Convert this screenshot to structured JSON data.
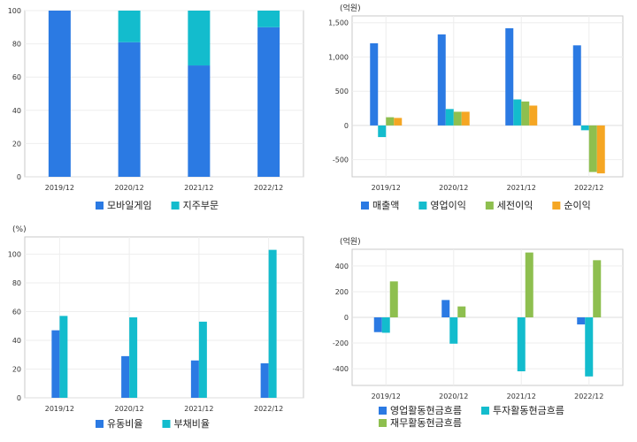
{
  "chart_data": [
    {
      "type": "bar",
      "stacked": true,
      "unit": "",
      "categories": [
        "2019/12",
        "2020/12",
        "2021/12",
        "2022/12"
      ],
      "ylim": [
        0,
        100
      ],
      "yticks": [
        0,
        20,
        40,
        60,
        80,
        100
      ],
      "series": [
        {
          "name": "모바일게임",
          "color": "#2b7ae3",
          "values": [
            100,
            81,
            67,
            90
          ]
        },
        {
          "name": "지주부문",
          "color": "#13bccd",
          "values": [
            0,
            19,
            33,
            10
          ]
        }
      ],
      "legend_position": "bottom",
      "grid": true
    },
    {
      "type": "bar",
      "stacked": false,
      "unit": "(억원)",
      "categories": [
        "2019/12",
        "2020/12",
        "2021/12",
        "2022/12"
      ],
      "ylim": [
        -750,
        1600
      ],
      "yticks": [
        -500,
        0,
        500,
        1000,
        1500
      ],
      "tick_labels": [
        "-500",
        "0",
        "500",
        "1,000",
        "1,500"
      ],
      "series": [
        {
          "name": "매출액",
          "color": "#2b7ae3",
          "values": [
            1200,
            1330,
            1420,
            1170
          ]
        },
        {
          "name": "영업이익",
          "color": "#13bccd",
          "values": [
            -170,
            240,
            380,
            -70
          ]
        },
        {
          "name": "세전이익",
          "color": "#8ebf4f",
          "values": [
            120,
            200,
            350,
            -680
          ]
        },
        {
          "name": "순이익",
          "color": "#f5a623",
          "values": [
            110,
            200,
            290,
            -700
          ]
        }
      ],
      "legend_position": "bottom",
      "grid": true
    },
    {
      "type": "bar",
      "stacked": false,
      "unit": "(%)",
      "categories": [
        "2019/12",
        "2020/12",
        "2021/12",
        "2022/12"
      ],
      "ylim": [
        0,
        112
      ],
      "yticks": [
        0,
        20,
        40,
        60,
        80,
        100
      ],
      "series": [
        {
          "name": "유동비율",
          "color": "#2b7ae3",
          "values": [
            47,
            29,
            26,
            24
          ]
        },
        {
          "name": "부채비율",
          "color": "#13bccd",
          "values": [
            57,
            56,
            53,
            103
          ]
        }
      ],
      "legend_position": "bottom",
      "grid": true
    },
    {
      "type": "bar",
      "stacked": false,
      "unit": "(억원)",
      "categories": [
        "2019/12",
        "2020/12",
        "2021/12",
        "2022/12"
      ],
      "ylim": [
        -530,
        530
      ],
      "yticks": [
        -400,
        -200,
        0,
        200,
        400
      ],
      "series": [
        {
          "name": "영업활동현금흐름",
          "color": "#2b7ae3",
          "values": [
            -115,
            135,
            0,
            -55
          ]
        },
        {
          "name": "투자활동현금흐름",
          "color": "#13bccd",
          "values": [
            -120,
            -205,
            -420,
            -460
          ]
        },
        {
          "name": "재무활동현금흐름",
          "color": "#8ebf4f",
          "values": [
            280,
            85,
            505,
            445
          ]
        }
      ],
      "legend_position": "bottom",
      "grid": true
    }
  ]
}
